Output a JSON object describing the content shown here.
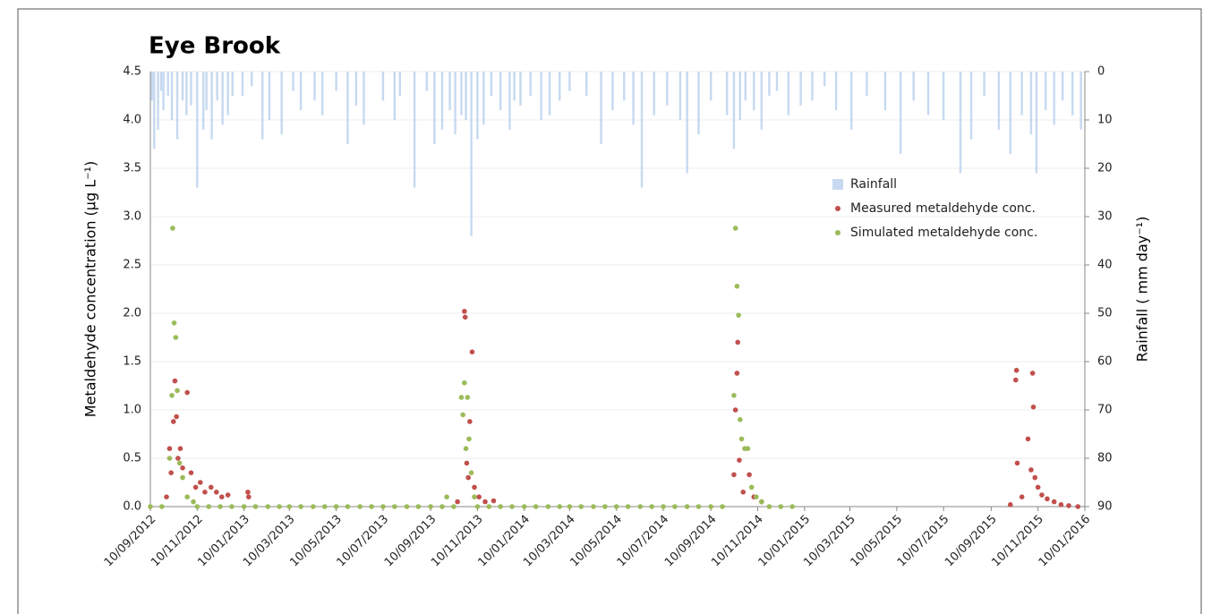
{
  "chart_data": {
    "type": "scatter",
    "title": "Eye Brook",
    "y_label": "Metaldehyde concentration (µg L⁻¹)",
    "y2_label": "Rainfall ( mm day⁻¹)",
    "legend_position": "right",
    "xlim": [
      "10/09/2012",
      "10/01/2016"
    ],
    "xticks": [
      "10/09/2012",
      "10/11/2012",
      "10/01/2013",
      "10/03/2013",
      "10/05/2013",
      "10/07/2013",
      "10/09/2013",
      "10/11/2013",
      "10/01/2014",
      "10/03/2014",
      "10/05/2014",
      "10/07/2014",
      "10/09/2014",
      "10/11/2014",
      "10/01/2015",
      "10/03/2015",
      "10/05/2015",
      "10/07/2015",
      "10/09/2015",
      "10/11/2015",
      "10/01/2016"
    ],
    "ylim": [
      0,
      4.5
    ],
    "yticks": [
      {
        "value": 0,
        "label": "0.0"
      },
      {
        "value": 0.5,
        "label": "0.5"
      },
      {
        "value": 1,
        "label": "1.0"
      },
      {
        "value": 1.5,
        "label": "1.5"
      },
      {
        "value": 2,
        "label": "2.0"
      },
      {
        "value": 2.5,
        "label": "2.5"
      },
      {
        "value": 3,
        "label": "3.0"
      },
      {
        "value": 3.5,
        "label": "3.5"
      },
      {
        "value": 4,
        "label": "4.0"
      },
      {
        "value": 4.5,
        "label": "4.5"
      }
    ],
    "y2lim": [
      90,
      0
    ],
    "y2ticks": [
      0,
      10,
      20,
      30,
      40,
      50,
      60,
      70,
      80,
      90
    ],
    "series": [
      {
        "name": "Rainfall",
        "type": "bar",
        "axis": "y2",
        "color": "#c6d9f0",
        "x": [
          "12/09/2012",
          "15/09/2012",
          "20/09/2012",
          "24/09/2012",
          "27/09/2012",
          "03/10/2012",
          "08/10/2012",
          "15/10/2012",
          "22/10/2012",
          "27/10/2012",
          "02/11/2012",
          "10/11/2012",
          "18/11/2012",
          "22/11/2012",
          "29/11/2012",
          "06/12/2012",
          "13/12/2012",
          "20/12/2012",
          "26/12/2012",
          "08/01/2013",
          "20/01/2013",
          "03/02/2013",
          "12/02/2013",
          "28/02/2013",
          "15/03/2013",
          "25/03/2013",
          "12/04/2013",
          "22/04/2013",
          "10/05/2013",
          "25/05/2013",
          "05/06/2013",
          "15/06/2013",
          "10/07/2013",
          "25/07/2013",
          "01/08/2013",
          "20/08/2013",
          "05/09/2013",
          "15/09/2013",
          "25/09/2013",
          "05/10/2013",
          "12/10/2013",
          "20/10/2013",
          "26/10/2013",
          "02/11/2013",
          "10/11/2013",
          "18/11/2013",
          "28/11/2013",
          "10/12/2013",
          "22/12/2013",
          "28/12/2013",
          "05/01/2014",
          "18/01/2014",
          "01/02/2014",
          "12/02/2014",
          "25/02/2014",
          "10/03/2014",
          "01/04/2014",
          "20/04/2014",
          "05/05/2014",
          "20/05/2014",
          "01/06/2014",
          "12/06/2014",
          "28/06/2014",
          "15/07/2014",
          "01/08/2014",
          "10/08/2014",
          "25/08/2014",
          "10/09/2014",
          "01/10/2014",
          "10/10/2014",
          "18/10/2014",
          "25/10/2014",
          "05/11/2014",
          "15/11/2014",
          "25/11/2014",
          "05/12/2014",
          "20/12/2014",
          "05/01/2015",
          "20/01/2015",
          "05/02/2015",
          "20/02/2015",
          "12/03/2015",
          "01/04/2015",
          "25/04/2015",
          "15/05/2015",
          "01/06/2015",
          "20/06/2015",
          "10/07/2015",
          "01/08/2015",
          "15/08/2015",
          "01/09/2015",
          "20/09/2015",
          "05/10/2015",
          "20/10/2015",
          "01/11/2015",
          "08/11/2015",
          "20/11/2015",
          "01/12/2015",
          "12/12/2015",
          "25/12/2015",
          "05/01/2016"
        ],
        "values": [
          6,
          16,
          12,
          4,
          8,
          5,
          10,
          14,
          6,
          9,
          7,
          24,
          12,
          8,
          14,
          6,
          11,
          9,
          5,
          5,
          3,
          14,
          10,
          13,
          4,
          8,
          6,
          9,
          4,
          15,
          7,
          11,
          6,
          10,
          5,
          24,
          4,
          15,
          12,
          8,
          13,
          9,
          10,
          34,
          14,
          11,
          5,
          8,
          12,
          6,
          7,
          5,
          10,
          9,
          6,
          4,
          5,
          15,
          8,
          6,
          11,
          24,
          9,
          7,
          10,
          21,
          13,
          6,
          9,
          16,
          10,
          6,
          8,
          12,
          5,
          4,
          9,
          7,
          6,
          3,
          8,
          12,
          5,
          8,
          17,
          6,
          9,
          10,
          21,
          14,
          5,
          12,
          17,
          9,
          13,
          21,
          8,
          11,
          6,
          9,
          12
        ]
      },
      {
        "name": "Measured metaldehyde conc.",
        "color": "#c0504d",
        "x": [
          "01/10/2012",
          "05/10/2012",
          "07/10/2012",
          "10/10/2012",
          "12/10/2012",
          "14/10/2012",
          "16/10/2012",
          "19/10/2012",
          "22/10/2012",
          "28/10/2012",
          "02/11/2012",
          "08/11/2012",
          "14/11/2012",
          "20/11/2012",
          "28/11/2012",
          "05/12/2012",
          "12/12/2012",
          "20/12/2012",
          "15/01/2013",
          "16/01/2013",
          "15/10/2013",
          "24/10/2013",
          "25/10/2013",
          "27/10/2013",
          "29/10/2013",
          "31/10/2013",
          "03/11/2013",
          "06/11/2013",
          "12/11/2013",
          "20/11/2013",
          "01/12/2013",
          "10/10/2014",
          "12/10/2014",
          "14/10/2014",
          "15/10/2014",
          "17/10/2014",
          "22/10/2014",
          "30/10/2014",
          "05/11/2014",
          "15/11/2014",
          "05/10/2015",
          "12/10/2015",
          "13/10/2015",
          "14/10/2015",
          "20/10/2015",
          "28/10/2015",
          "01/11/2015",
          "03/11/2015",
          "04/11/2015",
          "06/11/2015",
          "10/11/2015",
          "15/11/2015",
          "22/11/2015",
          "01/12/2015",
          "10/12/2015",
          "20/12/2015",
          "01/01/2016"
        ],
        "values": [
          0.1,
          0.6,
          0.35,
          0.88,
          1.3,
          0.93,
          0.5,
          0.6,
          0.4,
          1.18,
          0.35,
          0.2,
          0.25,
          0.15,
          0.2,
          0.15,
          0.1,
          0.12,
          0.15,
          0.1,
          0.05,
          2.02,
          1.96,
          0.45,
          0.3,
          0.88,
          1.6,
          0.2,
          0.1,
          0.05,
          0.06,
          0.33,
          1,
          1.38,
          1.7,
          0.48,
          0.15,
          0.33,
          0.1,
          0.05,
          0.02,
          1.31,
          1.41,
          0.45,
          0.1,
          0.7,
          0.38,
          1.38,
          1.03,
          0.3,
          0.2,
          0.12,
          0.08,
          0.05,
          0.02,
          0.01,
          0
        ]
      },
      {
        "name": "Simulated metaldehyde conc.",
        "color": "#9bbb59",
        "x": [
          "10/09/2012",
          "25/09/2012",
          "05/10/2012",
          "08/10/2012",
          "09/10/2012",
          "11/10/2012",
          "13/10/2012",
          "15/10/2012",
          "18/10/2012",
          "22/10/2012",
          "28/10/2012",
          "05/11/2012",
          "10/11/2012",
          "25/11/2012",
          "10/12/2012",
          "25/12/2012",
          "10/01/2013",
          "25/01/2013",
          "10/02/2013",
          "25/02/2013",
          "10/03/2013",
          "25/03/2013",
          "10/04/2013",
          "25/04/2013",
          "10/05/2013",
          "25/05/2013",
          "10/06/2013",
          "25/06/2013",
          "10/07/2013",
          "25/07/2013",
          "10/08/2013",
          "25/08/2013",
          "10/09/2013",
          "25/09/2013",
          "01/10/2013",
          "10/10/2013",
          "20/10/2013",
          "22/10/2013",
          "24/10/2013",
          "26/10/2013",
          "28/10/2013",
          "30/10/2013",
          "02/11/2013",
          "06/11/2013",
          "10/11/2013",
          "25/11/2013",
          "10/12/2013",
          "25/12/2013",
          "10/01/2014",
          "25/01/2014",
          "10/02/2014",
          "25/02/2014",
          "10/03/2014",
          "25/03/2014",
          "10/04/2014",
          "25/04/2014",
          "10/05/2014",
          "25/05/2014",
          "10/06/2014",
          "25/06/2014",
          "10/07/2014",
          "25/07/2014",
          "10/08/2014",
          "25/08/2014",
          "10/09/2014",
          "25/09/2014",
          "10/10/2014",
          "12/10/2014",
          "14/10/2014",
          "16/10/2014",
          "18/10/2014",
          "20/10/2014",
          "24/10/2014",
          "28/10/2014",
          "02/11/2014",
          "08/11/2014",
          "15/11/2014",
          "25/11/2014",
          "10/12/2014",
          "25/12/2014"
        ],
        "values": [
          0,
          0,
          0.5,
          1.15,
          2.88,
          1.9,
          1.75,
          1.2,
          0.45,
          0.3,
          0.1,
          0.05,
          0,
          0,
          0,
          0,
          0,
          0,
          0,
          0,
          0,
          0,
          0,
          0,
          0,
          0,
          0,
          0,
          0,
          0,
          0,
          0,
          0,
          0,
          0.1,
          0,
          1.13,
          0.95,
          1.28,
          0.6,
          1.13,
          0.7,
          0.35,
          0.1,
          0,
          0,
          0,
          0,
          0,
          0,
          0,
          0,
          0,
          0,
          0,
          0,
          0,
          0,
          0,
          0,
          0,
          0,
          0,
          0,
          0,
          0,
          1.15,
          2.88,
          2.28,
          1.98,
          0.9,
          0.7,
          0.6,
          0.6,
          0.2,
          0.1,
          0.05,
          0,
          0,
          0
        ]
      }
    ]
  }
}
